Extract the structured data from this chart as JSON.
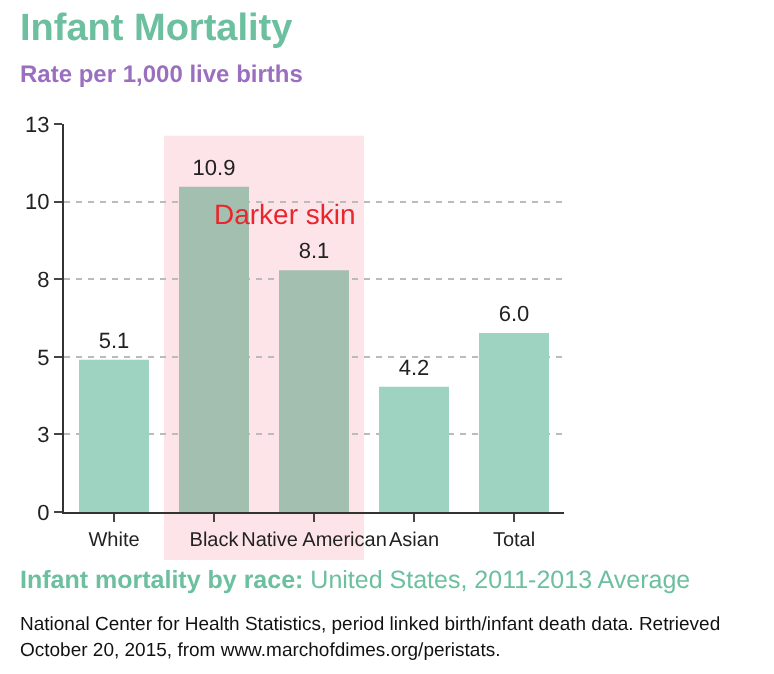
{
  "chart_data": {
    "type": "bar",
    "title": "Infant Mortality",
    "subtitle": "Rate per 1,000 live births",
    "categories": [
      "White",
      "Black",
      "Native American",
      "Asian",
      "Total"
    ],
    "values": [
      5.1,
      10.9,
      8.1,
      4.2,
      6.0
    ],
    "colors": [
      "#9dd3c0",
      "#a3bfb0",
      "#a3bfb0",
      "#9dd3c0",
      "#9dd3c0"
    ],
    "value_labels": [
      "5.1",
      "10.9",
      "8.1",
      "4.2",
      "6.0"
    ],
    "ylim": [
      0,
      13
    ],
    "yticks": [
      0,
      {
        "value": 2.6,
        "label": "3"
      },
      {
        "value": 5.2,
        "label": "5"
      },
      {
        "value": 7.8,
        "label": "8"
      },
      {
        "value": 10.4,
        "label": "10"
      },
      13
    ],
    "grid": "y",
    "bands": [
      {
        "axis": "x",
        "from": "Black",
        "to": "Native American",
        "label": "Darker skin",
        "color": "#fde4e8"
      }
    ],
    "annotations": [
      "Infant mortality by race:",
      "United States, 2011-2013 Average",
      "National Center for Health Statistics, period linked birth/infant death data. Retrieved October 20, 2015, from www.marchofdimes.org/peristats."
    ]
  }
}
